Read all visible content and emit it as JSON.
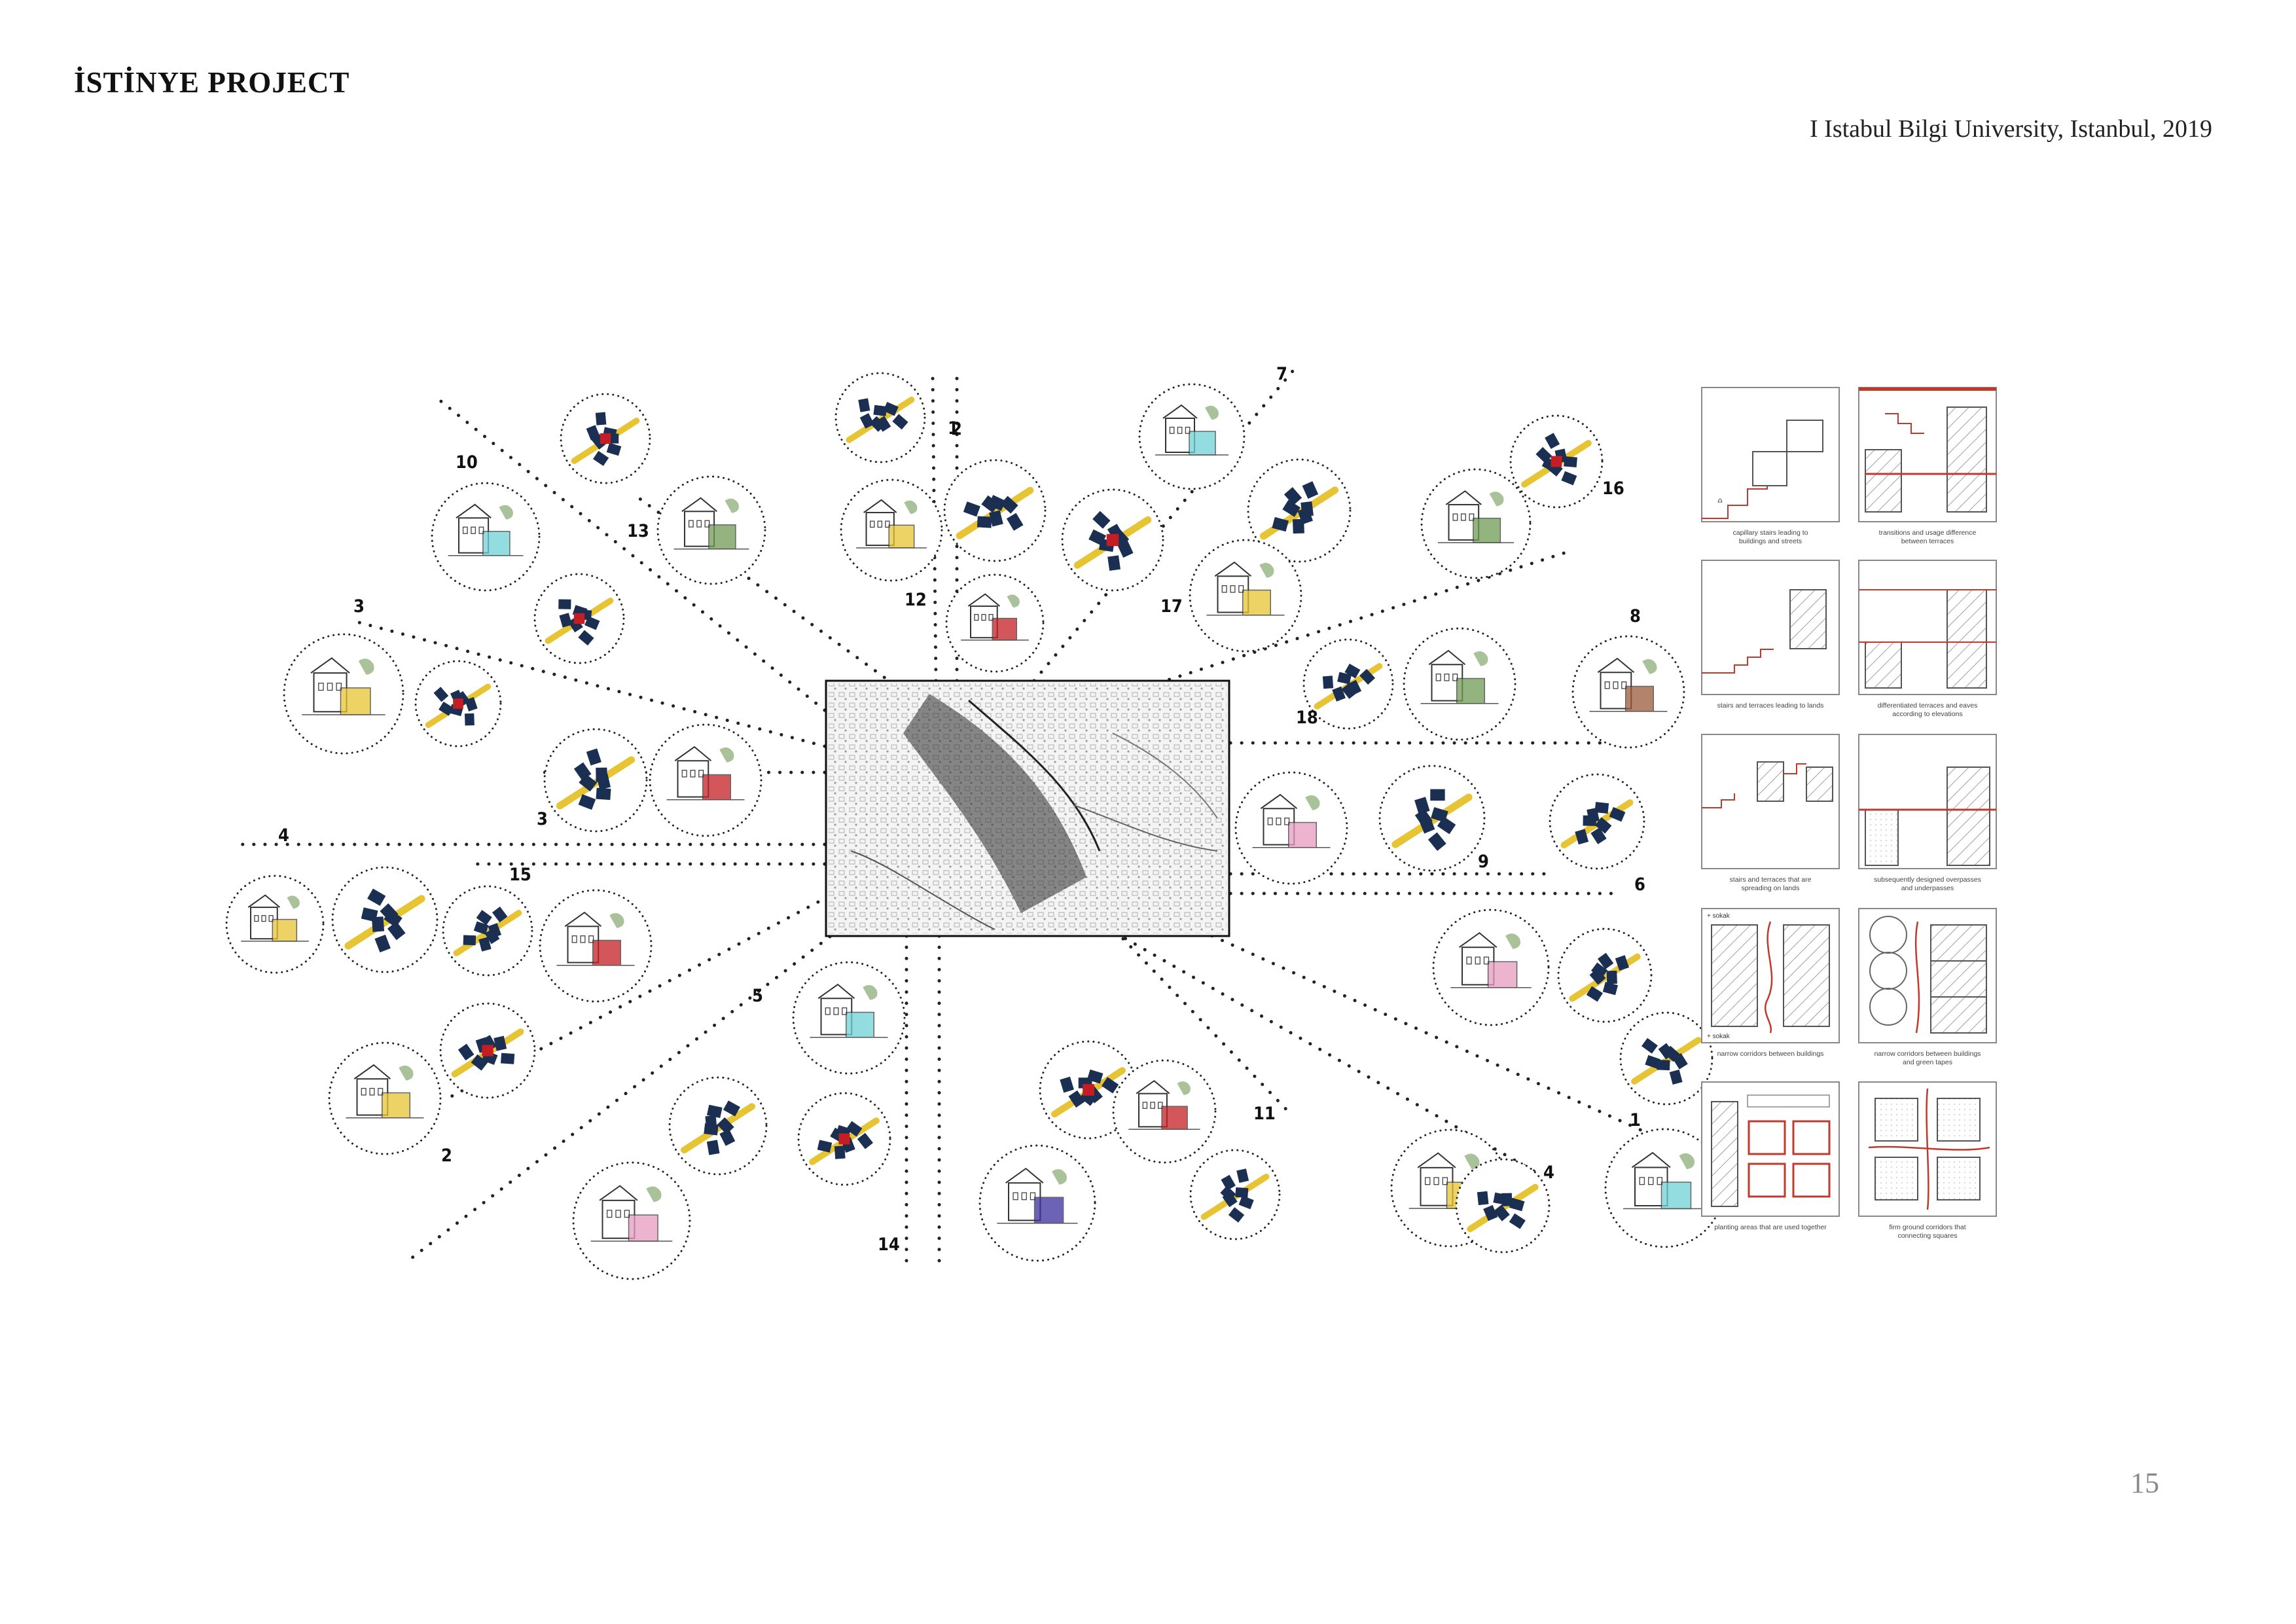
{
  "header": {
    "title": "İSTİNYE PROJECT",
    "subtitle": "I Istabul Bilgi University, Istanbul, 2019"
  },
  "footer": {
    "page_number": "15"
  },
  "colors": {
    "navy": "#1b2f52",
    "red": "#c41e24",
    "yellow": "#e7c433",
    "pink": "#e79bc1",
    "green": "#6f9a55",
    "brown": "#9a5a3a",
    "purple": "#3c2fa0",
    "teal": "#6fd2d8",
    "diagram_red": "#c0392b"
  },
  "central_map": {
    "icon": "site-plan-map"
  },
  "route_labels": [
    "1",
    "1",
    "2",
    "2",
    "3",
    "3",
    "4",
    "4",
    "5",
    "6",
    "7",
    "8",
    "9",
    "10",
    "11",
    "12",
    "13",
    "14",
    "15",
    "16",
    "17",
    "18"
  ],
  "circles": [
    {
      "type": "plan"
    },
    {
      "type": "sketch",
      "accent": "pink"
    },
    {
      "type": "sketch",
      "accent": "green"
    },
    {
      "type": "plan"
    },
    {
      "type": "plan"
    },
    {
      "type": "sketch",
      "accent": "orange"
    },
    {
      "type": "plan"
    },
    {
      "type": "sketch",
      "accent": "purple"
    },
    {
      "type": "sketch",
      "accent": "green"
    }
  ],
  "diagram_panels": [
    {
      "caption_lines": [
        "capillary stairs leading to",
        "buildings and streets"
      ]
    },
    {
      "caption_lines": [
        "transitions and usage difference",
        "between terraces"
      ]
    },
    {
      "caption_lines": [
        "stairs and terraces leading to lands"
      ]
    },
    {
      "caption_lines": [
        "differentiated terraces and eaves",
        "according to elevations"
      ]
    },
    {
      "caption_lines": [
        "stairs and terraces that are",
        "spreading on lands"
      ]
    },
    {
      "caption_lines": [
        "subsequently designed overpasses",
        "and underpasses"
      ]
    },
    {
      "caption_lines": [
        "narrow corridors between buildings"
      ]
    },
    {
      "caption_lines": [
        "narrow corridors between buildings",
        "and green tapes"
      ]
    },
    {
      "caption_lines": [
        "planting areas that are used together"
      ]
    },
    {
      "caption_lines": [
        "firm ground corridors that",
        "connecting squares"
      ]
    }
  ],
  "corridor_labels": [
    "+ sokak",
    "+ sokak"
  ]
}
